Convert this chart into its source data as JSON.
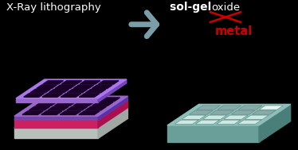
{
  "bg_color": "#000000",
  "title_left": "X-Ray lithography",
  "title_right_bold": "sol-gel ",
  "title_right_oxide": "oxide",
  "title_right_metal": "metal",
  "text_color_white": "#ffffff",
  "text_color_red": "#cc0000",
  "arrow_color": "#7a9ea8",
  "left_box": {
    "base_top": "#d0d8d4",
    "base_front": "#b8c0bc",
    "base_side": "#a0a8a4",
    "glow_top": "#e0306a",
    "glow_front": "#cc2060",
    "glow_side": "#aa1050",
    "glow_squares": "#ffbbdd",
    "purple_top": "#9966cc",
    "purple_front": "#7744aa",
    "purple_side": "#5533aa",
    "hole_color": "#1a0028",
    "sheet_top": "#aa77ee",
    "sheet_front": "#9966cc",
    "sheet_side": "#7744bb"
  },
  "right_box": {
    "base_top": "#8bbfb8",
    "base_front": "#6a9e98",
    "base_side": "#4a7e78",
    "hole_color": "#336666",
    "metal_light": "#d0e8e4",
    "metal_dark": "#88aaa8"
  }
}
